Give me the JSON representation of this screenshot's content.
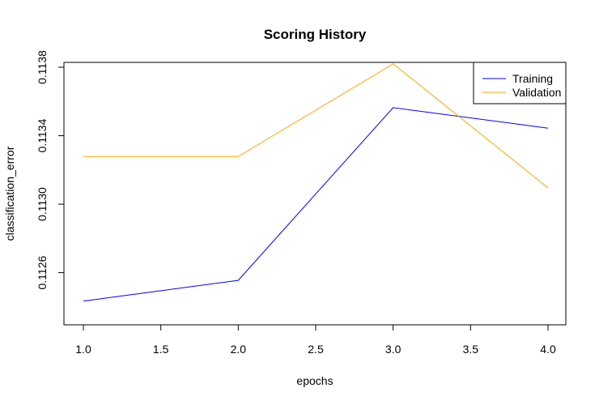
{
  "chart_data": {
    "type": "line",
    "title": "Scoring History",
    "xlabel": "epochs",
    "ylabel": "classification_error",
    "x": [
      1.0,
      2.0,
      3.0,
      4.0
    ],
    "xlim": [
      1.0,
      4.0
    ],
    "ylim": [
      0.1123,
      0.1138
    ],
    "xticks": [
      "1.0",
      "1.5",
      "2.0",
      "2.5",
      "3.0",
      "3.5",
      "4.0"
    ],
    "yticks": [
      "0.1126",
      "0.1130",
      "0.1134",
      "0.1138"
    ],
    "grid": false,
    "legend_position": "top-right",
    "series": [
      {
        "name": "Training",
        "color": "#0000ff",
        "values": [
          0.112434,
          0.112555,
          0.113564,
          0.113444
        ]
      },
      {
        "name": "Validation",
        "color": "#ffa500",
        "values": [
          0.113278,
          0.113278,
          0.11382,
          0.113095
        ]
      }
    ]
  }
}
